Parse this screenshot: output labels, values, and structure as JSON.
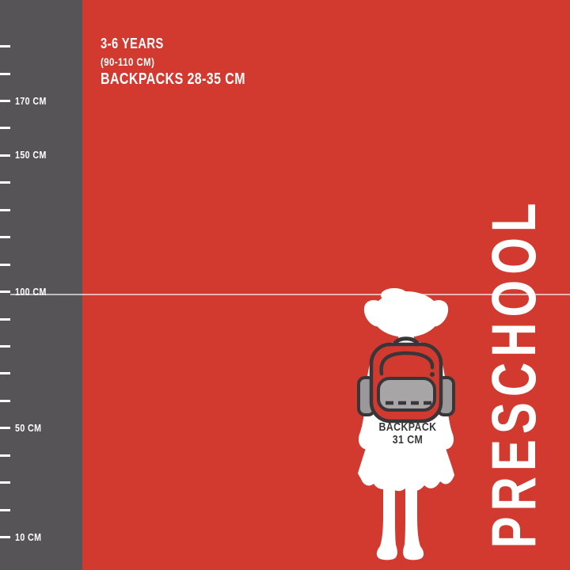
{
  "colors": {
    "background_red": "#d23a30",
    "ruler_gray": "#565456",
    "white": "#ffffff",
    "outline_dark": "#383638",
    "front_pocket_gray": "#a8a5a6",
    "side_pocket_gray": "#9b9899",
    "height_line": "rgba(255,255,255,0.62)"
  },
  "header": {
    "age_range": "3-6 YEARS",
    "height_range": "(90-110 CM)",
    "backpack_size_range": "BACKPACKS 28-35 CM"
  },
  "category_label": "PRESCHOOL",
  "figure": {
    "child_height_cm": 100,
    "backpack_caption_line1": "BACKPACK",
    "backpack_caption_line2": "31 CM"
  },
  "ruler": {
    "unit": "CM",
    "ticks": [
      {
        "cm": 190,
        "label": ""
      },
      {
        "cm": 180,
        "label": ""
      },
      {
        "cm": 170,
        "label": "170 CM"
      },
      {
        "cm": 160,
        "label": ""
      },
      {
        "cm": 150,
        "label": "150 CM"
      },
      {
        "cm": 140,
        "label": ""
      },
      {
        "cm": 130,
        "label": ""
      },
      {
        "cm": 120,
        "label": ""
      },
      {
        "cm": 110,
        "label": ""
      },
      {
        "cm": 100,
        "label": "100 CM"
      },
      {
        "cm": 90,
        "label": ""
      },
      {
        "cm": 80,
        "label": ""
      },
      {
        "cm": 70,
        "label": ""
      },
      {
        "cm": 60,
        "label": ""
      },
      {
        "cm": 50,
        "label": "50 CM"
      },
      {
        "cm": 40,
        "label": ""
      },
      {
        "cm": 30,
        "label": ""
      },
      {
        "cm": 20,
        "label": ""
      },
      {
        "cm": 10,
        "label": "10 CM"
      }
    ]
  }
}
